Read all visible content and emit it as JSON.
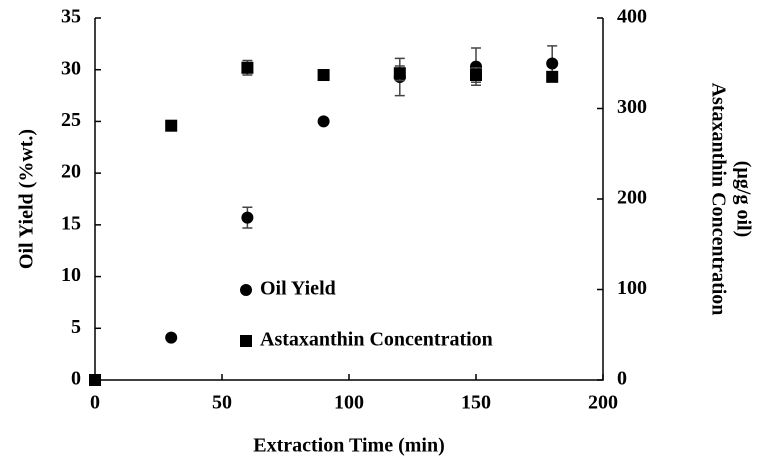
{
  "chart_data": {
    "type": "scatter",
    "xlabel": "Extraction Time (min)",
    "ylabel": "Oil Yield (%wt.)",
    "y2label": [
      "Astaxanthin Concentration",
      "(µg/g oil)"
    ],
    "xlim": [
      0,
      200
    ],
    "xticks": [
      0,
      50,
      100,
      150,
      200
    ],
    "ylim": [
      0,
      35
    ],
    "yticks": [
      0,
      5,
      10,
      15,
      20,
      25,
      30,
      35
    ],
    "y2lim": [
      0,
      400
    ],
    "y2ticks": [
      0,
      100,
      200,
      300,
      400
    ],
    "series": [
      {
        "name": "Oil Yield",
        "marker": "circle",
        "color": "#000000",
        "x": [
          0,
          30,
          60,
          90,
          120,
          150,
          180
        ],
        "values": [
          0,
          4.1,
          15.7,
          25,
          29.3,
          30.3,
          30.6
        ],
        "errors": [
          null,
          null,
          1,
          null,
          1.8,
          1.8,
          1.7
        ]
      },
      {
        "name": "Astaxanthin Concentration",
        "marker": "square",
        "color": "#000000",
        "axis": "y2",
        "x": [
          0,
          30,
          60,
          90,
          120,
          150,
          180
        ],
        "values": [
          0,
          281,
          345,
          337,
          339,
          337,
          335
        ],
        "errors": [
          null,
          null,
          8,
          4,
          8,
          8,
          3
        ]
      }
    ]
  }
}
